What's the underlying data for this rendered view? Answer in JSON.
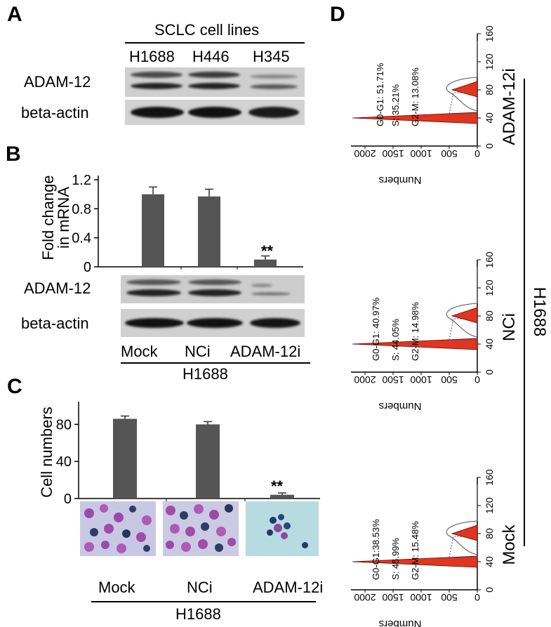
{
  "panels": {
    "a": "A",
    "b": "B",
    "c": "C",
    "d": "D"
  },
  "panel_a": {
    "header": "SCLC cell lines",
    "lanes": [
      "H1688",
      "H446",
      "H345"
    ],
    "rows": [
      "ADAM-12",
      "beta-actin"
    ]
  },
  "panel_b": {
    "ylabel_line1": "Fold change",
    "ylabel_line2": "in mRNA",
    "rows": [
      "ADAM-12",
      "beta-actin"
    ],
    "lanes": [
      "Mock",
      "NCi",
      "ADAM-12i"
    ],
    "group": "H1688",
    "sig": "**"
  },
  "panel_c": {
    "ylabel": "Cell numbers",
    "lanes": [
      "Mock",
      "NCi",
      "ADAM-12i"
    ],
    "group": "H1688",
    "sig": "**"
  },
  "panel_d": {
    "group": "H1688",
    "xlabel": "Numbers",
    "histograms": [
      {
        "name": "ADAM-12i",
        "g0g1": "G0-G1: 51.71%",
        "s": "S: 35.21%",
        "g2m": "G2-M: 13.08%"
      },
      {
        "name": "NCi",
        "g0g1": "G0-G1: 40.97%",
        "s": "S: 44.05%",
        "g2m": "G2-M: 14.98%"
      },
      {
        "name": "Mock",
        "g0g1": "G0-G1:38.53%",
        "s": "S: 45.99%",
        "g2m": "G2-M: 15.48%"
      }
    ]
  },
  "chart_data": [
    {
      "type": "bar",
      "panel": "B",
      "categories": [
        "Mock",
        "NCi",
        "ADAM-12i"
      ],
      "values": [
        1.0,
        0.97,
        0.1
      ],
      "errors": [
        0.1,
        0.1,
        0.05
      ],
      "ylabel": "Fold change in mRNA",
      "ylim": [
        0,
        1.2
      ],
      "yticks": [
        "0",
        "0.4",
        "0.8",
        "1.2"
      ]
    },
    {
      "type": "bar",
      "panel": "C",
      "categories": [
        "Mock",
        "NCi",
        "ADAM-12i"
      ],
      "values": [
        86,
        80,
        4
      ],
      "errors": [
        3,
        3,
        2
      ],
      "ylabel": "Cell numbers",
      "ylim": [
        0,
        100
      ],
      "yticks": [
        "0",
        "40",
        "80"
      ]
    }
  ],
  "flow_axes": {
    "channel_ticks": [
      "0",
      "40",
      "80",
      "120",
      "160"
    ],
    "count_ticks": [
      "0",
      "500",
      "1000",
      "1500",
      "2000"
    ]
  },
  "colors": {
    "bar": "#555555",
    "fill_red": "#e0361f",
    "hatch": "#3b4aa0"
  }
}
